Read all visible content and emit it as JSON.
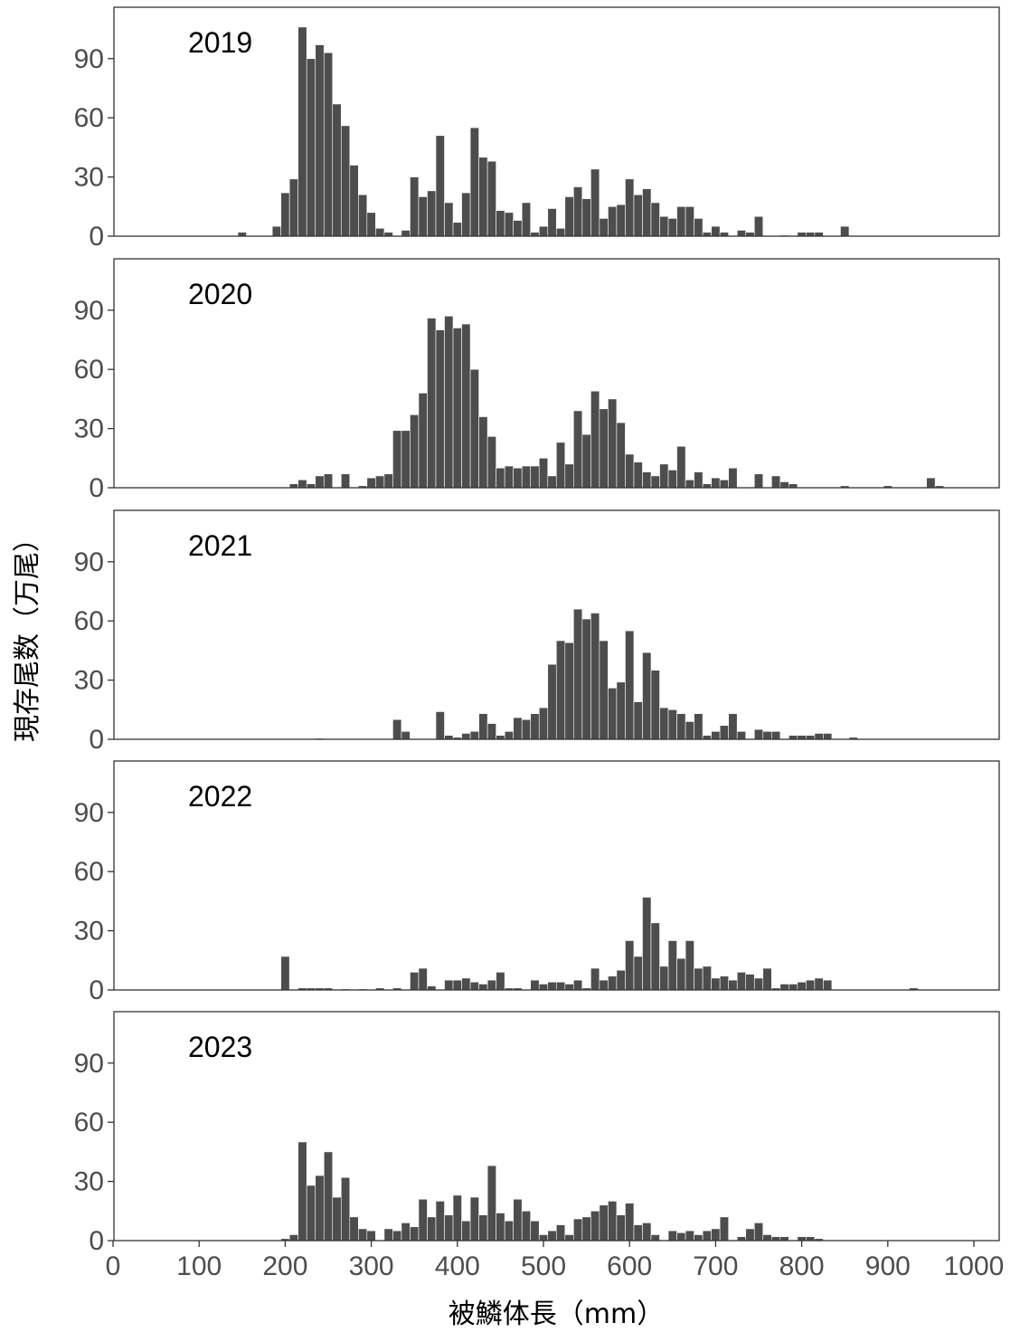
{
  "chart_data": {
    "type": "bar",
    "ylabel": "現存尾数（万尾）",
    "xlabel": "被鱗体長（mm）",
    "xlim": [
      0,
      1000
    ],
    "ylim": [
      0,
      112
    ],
    "x_ticks": [
      "0",
      "100",
      "200",
      "300",
      "400",
      "500",
      "600",
      "700",
      "800",
      "900",
      "1000"
    ],
    "y_ticks": [
      "0",
      "30",
      "60",
      "90"
    ],
    "bin_width_mm": 10,
    "bar_color": "#4d4d4d",
    "panels": [
      {
        "label": "2019",
        "bars": [
          [
            150,
            2
          ],
          [
            190,
            5
          ],
          [
            200,
            22
          ],
          [
            210,
            29
          ],
          [
            220,
            106
          ],
          [
            230,
            90
          ],
          [
            240,
            97
          ],
          [
            250,
            93
          ],
          [
            260,
            67
          ],
          [
            270,
            56
          ],
          [
            280,
            36
          ],
          [
            290,
            21
          ],
          [
            300,
            12
          ],
          [
            310,
            4
          ],
          [
            320,
            2
          ],
          [
            340,
            3
          ],
          [
            350,
            30
          ],
          [
            360,
            20
          ],
          [
            370,
            23
          ],
          [
            380,
            51
          ],
          [
            390,
            17
          ],
          [
            400,
            7
          ],
          [
            410,
            22
          ],
          [
            420,
            55
          ],
          [
            430,
            40
          ],
          [
            440,
            38
          ],
          [
            450,
            13
          ],
          [
            460,
            12
          ],
          [
            470,
            8
          ],
          [
            480,
            17
          ],
          [
            490,
            2
          ],
          [
            500,
            5
          ],
          [
            510,
            14
          ],
          [
            520,
            4
          ],
          [
            530,
            20
          ],
          [
            540,
            25
          ],
          [
            550,
            19
          ],
          [
            560,
            34
          ],
          [
            570,
            9
          ],
          [
            580,
            15
          ],
          [
            590,
            16
          ],
          [
            600,
            29
          ],
          [
            610,
            21
          ],
          [
            620,
            24
          ],
          [
            630,
            17
          ],
          [
            640,
            10
          ],
          [
            650,
            9
          ],
          [
            660,
            15
          ],
          [
            670,
            15
          ],
          [
            680,
            9
          ],
          [
            690,
            2
          ],
          [
            700,
            5
          ],
          [
            710,
            2
          ],
          [
            730,
            3
          ],
          [
            740,
            2
          ],
          [
            750,
            10
          ],
          [
            780,
            0.5
          ],
          [
            800,
            2
          ],
          [
            810,
            2
          ],
          [
            820,
            2
          ],
          [
            850,
            5
          ]
        ]
      },
      {
        "label": "2020",
        "bars": [
          [
            210,
            2
          ],
          [
            220,
            4
          ],
          [
            230,
            2
          ],
          [
            240,
            6
          ],
          [
            250,
            7
          ],
          [
            270,
            7
          ],
          [
            290,
            1
          ],
          [
            300,
            5
          ],
          [
            310,
            6
          ],
          [
            320,
            7
          ],
          [
            330,
            29
          ],
          [
            340,
            29
          ],
          [
            350,
            37
          ],
          [
            360,
            48
          ],
          [
            370,
            86
          ],
          [
            380,
            80
          ],
          [
            390,
            87
          ],
          [
            400,
            81
          ],
          [
            410,
            83
          ],
          [
            420,
            60
          ],
          [
            430,
            36
          ],
          [
            440,
            26
          ],
          [
            450,
            10
          ],
          [
            460,
            11
          ],
          [
            470,
            10
          ],
          [
            480,
            11
          ],
          [
            490,
            11
          ],
          [
            500,
            15
          ],
          [
            510,
            6
          ],
          [
            520,
            23
          ],
          [
            530,
            12
          ],
          [
            540,
            39
          ],
          [
            550,
            27
          ],
          [
            560,
            49
          ],
          [
            570,
            40
          ],
          [
            580,
            45
          ],
          [
            590,
            33
          ],
          [
            600,
            17
          ],
          [
            610,
            13
          ],
          [
            620,
            8
          ],
          [
            630,
            6
          ],
          [
            640,
            12
          ],
          [
            650,
            9
          ],
          [
            660,
            21
          ],
          [
            670,
            4
          ],
          [
            680,
            8
          ],
          [
            690,
            2
          ],
          [
            700,
            5
          ],
          [
            710,
            4
          ],
          [
            720,
            10
          ],
          [
            750,
            7
          ],
          [
            770,
            6
          ],
          [
            780,
            3
          ],
          [
            790,
            2
          ],
          [
            850,
            1
          ],
          [
            900,
            1
          ],
          [
            950,
            5
          ],
          [
            960,
            1
          ]
        ]
      },
      {
        "label": "2021",
        "bars": [
          [
            240,
            0.5
          ],
          [
            330,
            10
          ],
          [
            340,
            4
          ],
          [
            380,
            14
          ],
          [
            390,
            2
          ],
          [
            400,
            1
          ],
          [
            410,
            3
          ],
          [
            420,
            4
          ],
          [
            430,
            13
          ],
          [
            440,
            8
          ],
          [
            450,
            2
          ],
          [
            460,
            4
          ],
          [
            470,
            11
          ],
          [
            480,
            10
          ],
          [
            490,
            13
          ],
          [
            500,
            16
          ],
          [
            510,
            38
          ],
          [
            520,
            50
          ],
          [
            530,
            49
          ],
          [
            540,
            66
          ],
          [
            550,
            61
          ],
          [
            560,
            64
          ],
          [
            570,
            50
          ],
          [
            580,
            26
          ],
          [
            590,
            29
          ],
          [
            600,
            55
          ],
          [
            610,
            19
          ],
          [
            620,
            44
          ],
          [
            630,
            35
          ],
          [
            640,
            16
          ],
          [
            650,
            15
          ],
          [
            660,
            13
          ],
          [
            670,
            9
          ],
          [
            680,
            13
          ],
          [
            690,
            2
          ],
          [
            700,
            4
          ],
          [
            710,
            7
          ],
          [
            720,
            13
          ],
          [
            730,
            4
          ],
          [
            750,
            5
          ],
          [
            760,
            4
          ],
          [
            770,
            4
          ],
          [
            790,
            2
          ],
          [
            800,
            2
          ],
          [
            810,
            2
          ],
          [
            820,
            3
          ],
          [
            830,
            3
          ],
          [
            860,
            1
          ]
        ]
      },
      {
        "label": "2022",
        "bars": [
          [
            200,
            17
          ],
          [
            220,
            1
          ],
          [
            230,
            1
          ],
          [
            240,
            1
          ],
          [
            250,
            1
          ],
          [
            270,
            0.5
          ],
          [
            290,
            0.5
          ],
          [
            310,
            1
          ],
          [
            330,
            1
          ],
          [
            350,
            9
          ],
          [
            360,
            11
          ],
          [
            370,
            2
          ],
          [
            390,
            5
          ],
          [
            400,
            5
          ],
          [
            410,
            6
          ],
          [
            420,
            4
          ],
          [
            430,
            3
          ],
          [
            440,
            5
          ],
          [
            450,
            9
          ],
          [
            460,
            1
          ],
          [
            470,
            1
          ],
          [
            490,
            5
          ],
          [
            500,
            3
          ],
          [
            510,
            4
          ],
          [
            520,
            4
          ],
          [
            530,
            3
          ],
          [
            540,
            5
          ],
          [
            550,
            1
          ],
          [
            560,
            11
          ],
          [
            570,
            5
          ],
          [
            580,
            7
          ],
          [
            590,
            10
          ],
          [
            600,
            25
          ],
          [
            610,
            17
          ],
          [
            620,
            47
          ],
          [
            630,
            34
          ],
          [
            640,
            12
          ],
          [
            650,
            25
          ],
          [
            660,
            16
          ],
          [
            670,
            25
          ],
          [
            680,
            11
          ],
          [
            690,
            12
          ],
          [
            700,
            6
          ],
          [
            710,
            7
          ],
          [
            720,
            5
          ],
          [
            730,
            9
          ],
          [
            740,
            8
          ],
          [
            750,
            6
          ],
          [
            760,
            11
          ],
          [
            770,
            1
          ],
          [
            780,
            3
          ],
          [
            790,
            3
          ],
          [
            800,
            4
          ],
          [
            810,
            5
          ],
          [
            820,
            6
          ],
          [
            830,
            5
          ],
          [
            930,
            1
          ]
        ]
      },
      {
        "label": "2023",
        "bars": [
          [
            200,
            1
          ],
          [
            210,
            3
          ],
          [
            220,
            50
          ],
          [
            230,
            28
          ],
          [
            240,
            33
          ],
          [
            250,
            45
          ],
          [
            260,
            22
          ],
          [
            270,
            32
          ],
          [
            280,
            12
          ],
          [
            290,
            6
          ],
          [
            300,
            5
          ],
          [
            320,
            6
          ],
          [
            330,
            5
          ],
          [
            340,
            9
          ],
          [
            350,
            7
          ],
          [
            360,
            21
          ],
          [
            370,
            12
          ],
          [
            380,
            20
          ],
          [
            390,
            13
          ],
          [
            400,
            23
          ],
          [
            410,
            10
          ],
          [
            420,
            22
          ],
          [
            430,
            13
          ],
          [
            440,
            38
          ],
          [
            450,
            14
          ],
          [
            460,
            10
          ],
          [
            470,
            21
          ],
          [
            480,
            15
          ],
          [
            490,
            10
          ],
          [
            500,
            3
          ],
          [
            510,
            5
          ],
          [
            520,
            8
          ],
          [
            530,
            3
          ],
          [
            540,
            11
          ],
          [
            550,
            12
          ],
          [
            560,
            15
          ],
          [
            570,
            18
          ],
          [
            580,
            20
          ],
          [
            590,
            13
          ],
          [
            600,
            19
          ],
          [
            610,
            8
          ],
          [
            620,
            9
          ],
          [
            630,
            3
          ],
          [
            650,
            5
          ],
          [
            660,
            4
          ],
          [
            670,
            5
          ],
          [
            680,
            3
          ],
          [
            690,
            5
          ],
          [
            700,
            6
          ],
          [
            710,
            12
          ],
          [
            730,
            2
          ],
          [
            740,
            6
          ],
          [
            750,
            9
          ],
          [
            760,
            3
          ],
          [
            770,
            2
          ],
          [
            780,
            2
          ],
          [
            800,
            2
          ],
          [
            810,
            2
          ],
          [
            820,
            1
          ]
        ]
      }
    ]
  }
}
